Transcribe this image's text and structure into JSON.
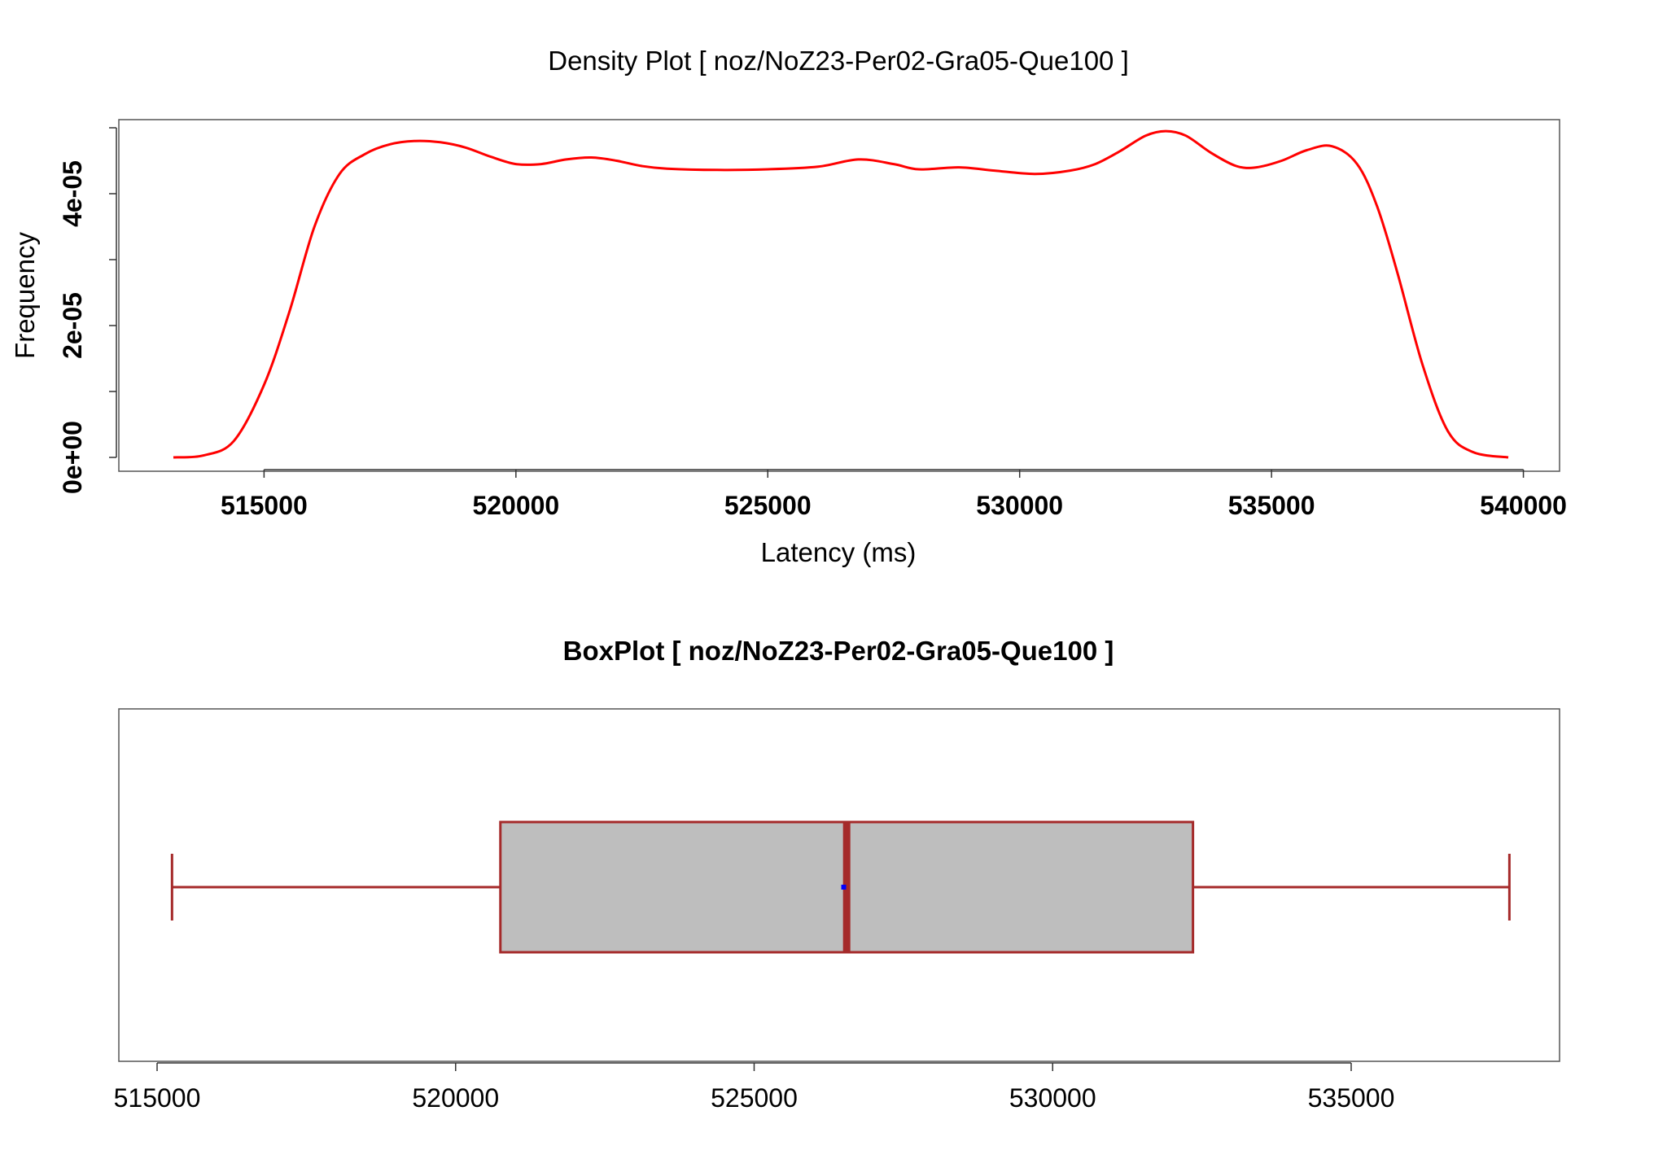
{
  "chart_data": [
    {
      "type": "line",
      "title": "Density Plot [ noz/NoZ23-Per02-Gra05-Que100 ]",
      "xlabel": "Latency (ms)",
      "ylabel": "Frequency",
      "xlim": [
        513200,
        539700
      ],
      "ylim": [
        0,
        5e-05
      ],
      "x_ticks": [
        515000,
        520000,
        525000,
        530000,
        535000,
        540000
      ],
      "x_tick_labels": [
        "515000",
        "520000",
        "525000",
        "530000",
        "535000",
        "540000"
      ],
      "y_ticks": [
        0,
        1e-05,
        2e-05,
        3e-05,
        4e-05,
        5e-05
      ],
      "y_tick_labels": [
        "0e+00",
        "",
        "2e-05",
        "",
        "4e-05",
        ""
      ],
      "grid": false,
      "series": [
        {
          "color": "#ff0000",
          "x": [
            513200,
            513800,
            514400,
            515000,
            515500,
            516000,
            516500,
            517000,
            517500,
            518000,
            518500,
            519000,
            519500,
            520000,
            520500,
            521000,
            521500,
            522000,
            522500,
            523000,
            524000,
            525000,
            526000,
            526800,
            527500,
            528000,
            528800,
            529500,
            530300,
            531000,
            531500,
            532000,
            532500,
            532900,
            533300,
            533800,
            534300,
            534700,
            535200,
            535700,
            536200,
            536700,
            537100,
            537500,
            538000,
            538500,
            539000,
            539700
          ],
          "y": [
            0,
            3e-07,
            2.5e-06,
            1.1e-05,
            2.2e-05,
            3.5e-05,
            4.3e-05,
            4.6e-05,
            4.75e-05,
            4.8e-05,
            4.78e-05,
            4.7e-05,
            4.56e-05,
            4.45e-05,
            4.45e-05,
            4.52e-05,
            4.55e-05,
            4.5e-05,
            4.42e-05,
            4.38e-05,
            4.36e-05,
            4.37e-05,
            4.41e-05,
            4.52e-05,
            4.45e-05,
            4.37e-05,
            4.4e-05,
            4.35e-05,
            4.3e-05,
            4.35e-05,
            4.45e-05,
            4.65e-05,
            4.88e-05,
            4.95e-05,
            4.88e-05,
            4.62e-05,
            4.42e-05,
            4.4e-05,
            4.5e-05,
            4.66e-05,
            4.72e-05,
            4.45e-05,
            3.8e-05,
            2.8e-05,
            1.4e-05,
            4e-06,
            8e-07,
            0
          ]
        }
      ]
    },
    {
      "type": "box",
      "title": "BoxPlot [ noz/NoZ23-Per02-Gra05-Que100 ]",
      "xlim": [
        514000,
        537500
      ],
      "x_ticks": [
        515000,
        520000,
        525000,
        530000,
        535000
      ],
      "x_tick_labels": [
        "515000",
        "520000",
        "525000",
        "530000",
        "535000"
      ],
      "min": 515250,
      "q1": 520750,
      "median": 526550,
      "mean": 526500,
      "q3": 532350,
      "max": 537650,
      "box_fill": "#bebebe",
      "box_color": "#a52a2a",
      "mean_color": "#0000ff"
    }
  ]
}
